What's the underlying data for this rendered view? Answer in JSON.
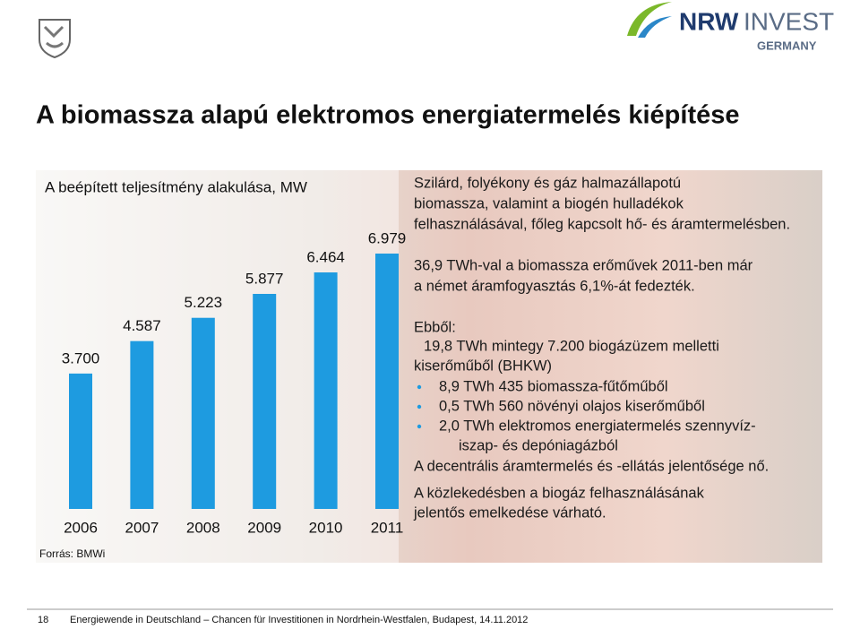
{
  "logo": {
    "name": "NRW",
    "suffix": "INVEST",
    "country": "GERMANY"
  },
  "header": {
    "title": "A biomassza alapú elektromos energiatermelés kiépítése"
  },
  "chart_data": {
    "type": "bar",
    "title": "A beépített teljesítmény alakulása, MW",
    "categories": [
      "2006",
      "2007",
      "2008",
      "2009",
      "2010",
      "2011"
    ],
    "values": [
      3700,
      4587,
      5223,
      5877,
      6464,
      6979
    ],
    "value_labels": [
      "3.700",
      "4.587",
      "5.223",
      "5.877",
      "6.464",
      "6.979"
    ],
    "color": "#1e9be0"
  },
  "source": "Forrás: BMWi",
  "text": {
    "intro": [
      "Szilárd, folyékony és gáz halmazállapotú",
      "biomassza, valamint a biogén hulladékok",
      "felhasználásával, főleg kapcsolt hő- és áramtermelésben."
    ],
    "share": [
      "36,9 TWh-val a biomassza erőművek 2011-ben már",
      "a német áramfogyasztás 6,1%-át fedezték."
    ],
    "breakdown_label": "Ebből:",
    "breakdown_main": [
      "19,8 TWh  mintegy 7.200 biogázüzem melletti",
      "kiserőműből (BHKW)"
    ],
    "bullets": [
      [
        "8,9 TWh 435 biomassza-fűtőműből"
      ],
      [
        "0,5 TWh 560 növényi olajos kiserőműből"
      ],
      [
        "2,0 TWh elektromos energiatermelés szennyvíz-",
        "iszap- és depóniagázból"
      ]
    ],
    "decentral": "A decentrális áramtermelés és -ellátás jelentősége nő.",
    "transport": [
      "A közlekedésben a biogáz felhasználásának",
      "jelentős emelkedése várható."
    ]
  },
  "footer": {
    "page": "18",
    "text": "Energiewende in Deutschland – Chancen für Investitionen in Nordrhein-Westfalen, Budapest, 14.11.2012"
  }
}
